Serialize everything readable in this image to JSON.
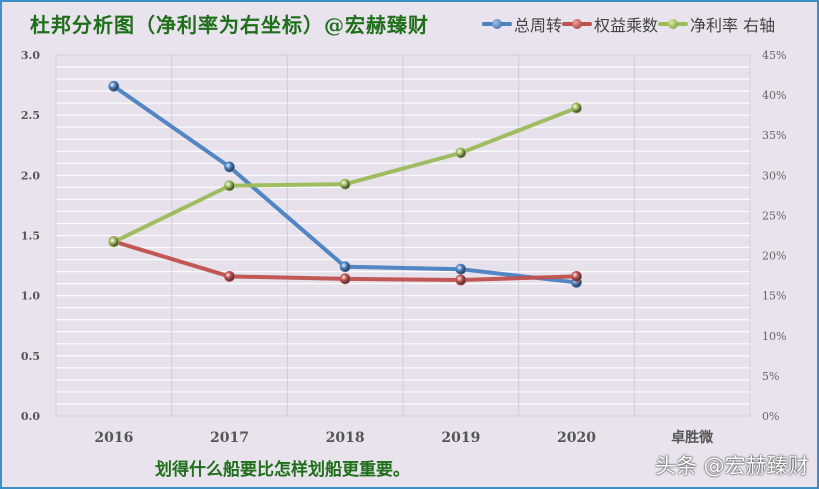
{
  "title": "杜邦分析图（净利率为右坐标）@宏赫臻财",
  "legend": [
    {
      "label": "总周转",
      "color": "#4a7fc1"
    },
    {
      "label": "权益乘数",
      "color": "#c0504d"
    },
    {
      "label": "净利率 右轴",
      "color": "#9bbb59"
    }
  ],
  "caption": "划得什么船要比怎样划船更重要。",
  "watermark": "头条 @宏赫臻财",
  "chart_data": {
    "type": "line",
    "title": "杜邦分析图（净利率为右坐标）@宏赫臻财",
    "categories": [
      "2016",
      "2017",
      "2018",
      "2019",
      "2020",
      "卓胜微"
    ],
    "series": [
      {
        "name": "总周转",
        "axis": "left",
        "color": "#4a7fc1",
        "values": [
          2.74,
          2.07,
          1.24,
          1.22,
          1.11,
          null
        ]
      },
      {
        "name": "权益乘数",
        "axis": "left",
        "color": "#c0504d",
        "values": [
          1.45,
          1.16,
          1.14,
          1.13,
          1.16,
          null
        ]
      },
      {
        "name": "净利率 右轴",
        "axis": "right",
        "color": "#9bbb59",
        "values": [
          0.217,
          0.287,
          0.289,
          0.328,
          0.384,
          null
        ]
      }
    ],
    "left_axis": {
      "ylim": [
        0,
        3.0
      ],
      "ticks": [
        "0.0",
        "0.5",
        "1.0",
        "1.5",
        "2.0",
        "2.5",
        "3.0"
      ]
    },
    "right_axis": {
      "ylim": [
        0,
        0.45
      ],
      "ticks": [
        "0%",
        "5%",
        "10%",
        "15%",
        "20%",
        "25%",
        "30%",
        "35%",
        "40%",
        "45%"
      ]
    },
    "xlabel": "",
    "ylabel": "",
    "grid": true,
    "legend_position": "top-right"
  }
}
